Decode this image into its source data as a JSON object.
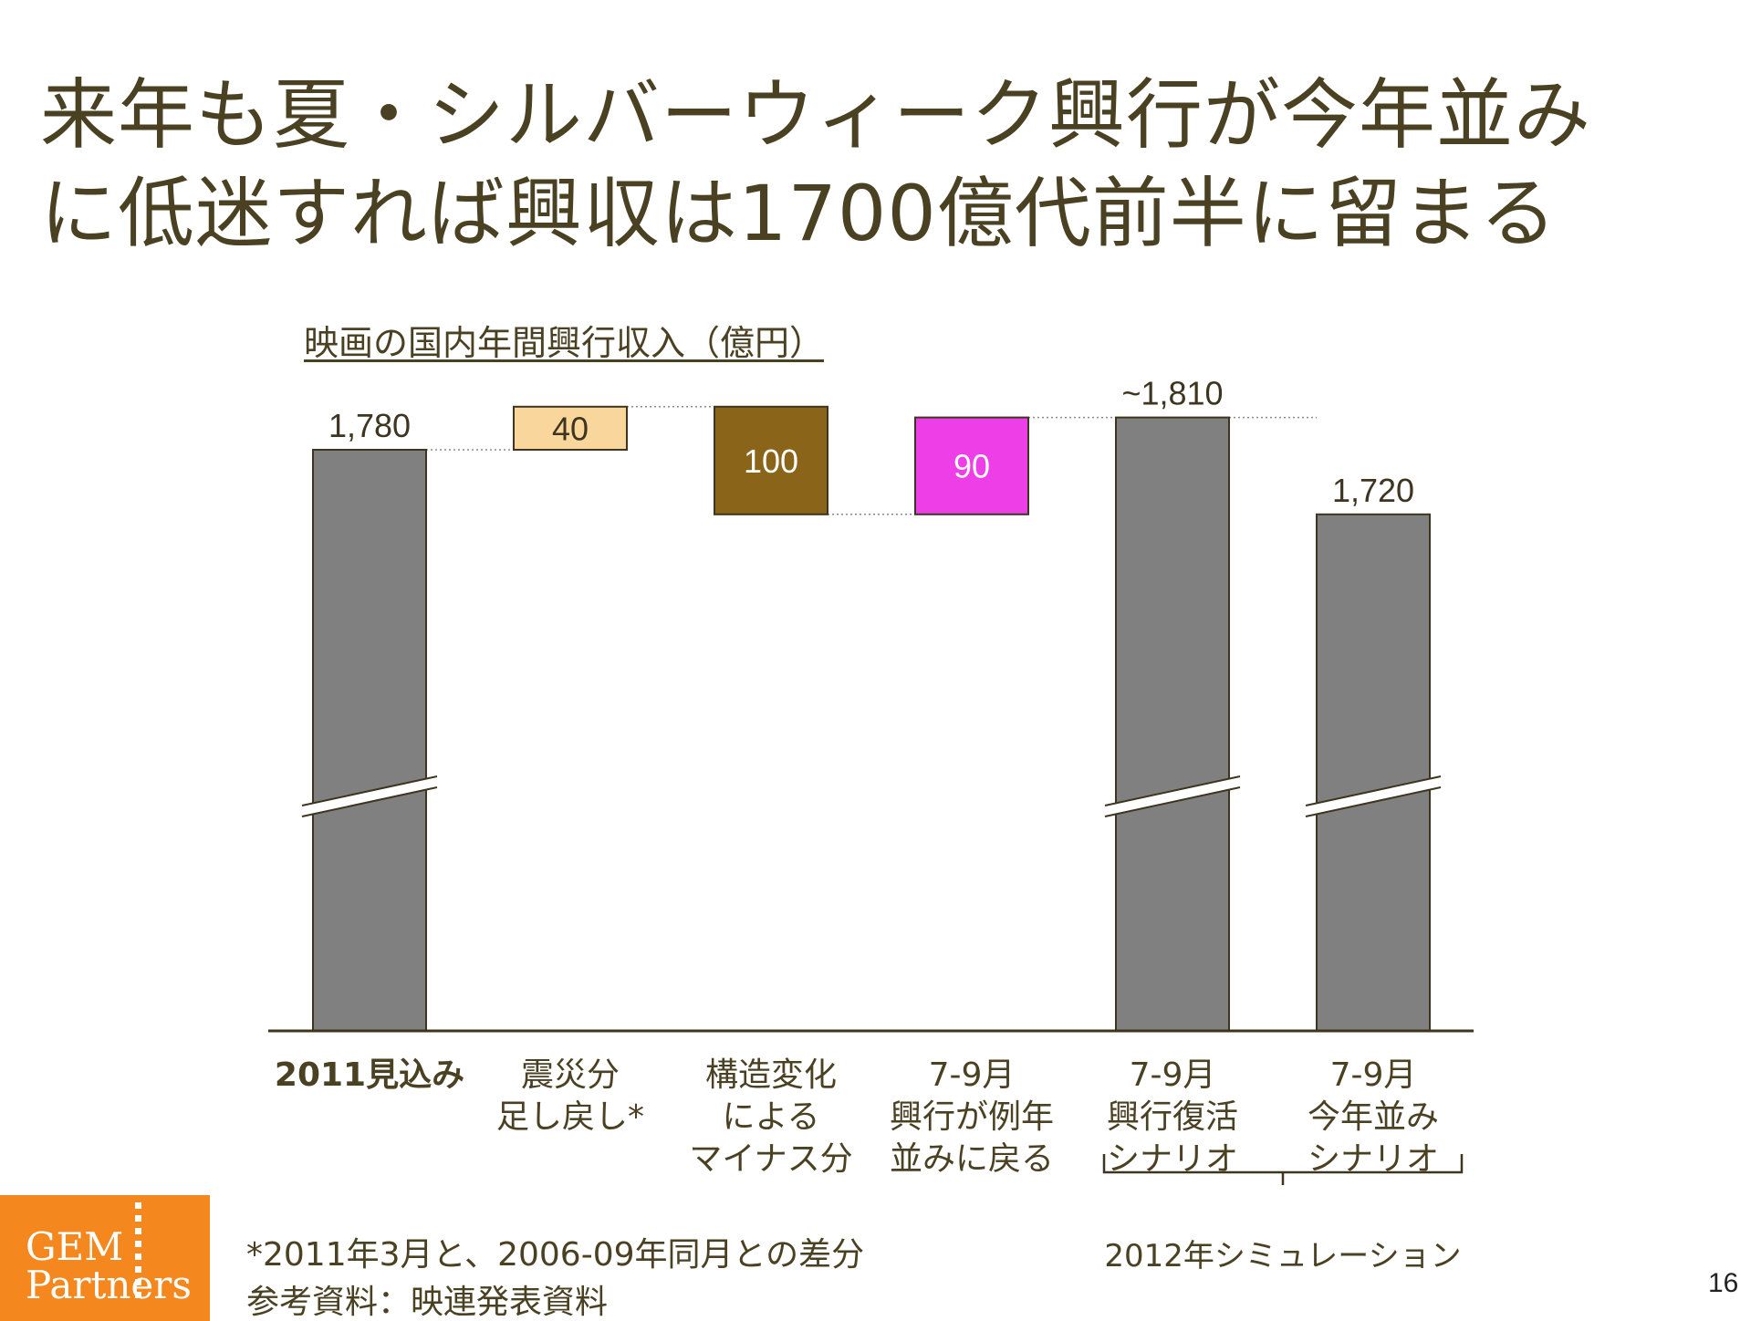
{
  "title": {
    "line1": "来年も夏・シルバーウィーク興行が今年並み",
    "line2": "に低迷すれば興収は1700億代前半に留まる"
  },
  "chart_heading": "映画の国内年間興行収入（億円）",
  "chart_data": {
    "type": "bar",
    "subtype": "waterfall",
    "title": "映画の国内年間興行収入（億円）",
    "unit": "億円",
    "axis_break": true,
    "categories": [
      [
        "2011見込み"
      ],
      [
        "震災分",
        "足し戻し*"
      ],
      [
        "構造変化",
        "による",
        "マイナス分"
      ],
      [
        "7-9月",
        "興行が例年",
        "並みに戻る"
      ],
      [
        "7-9月",
        "興行復活",
        "シナリオ"
      ],
      [
        "7-9月",
        "今年並み",
        "シナリオ"
      ]
    ],
    "values": [
      1780,
      40,
      -100,
      90,
      1810,
      1720
    ],
    "labels": [
      "1,780",
      "40",
      "100",
      "90",
      "~1,810",
      "1,720"
    ],
    "kinds": [
      "total",
      "increase",
      "decrease",
      "increase",
      "total",
      "total"
    ],
    "colors": [
      "#808080",
      "#f9d79c",
      "#8a6418",
      "#ee3ee8",
      "#808080",
      "#808080"
    ],
    "bracket_label": "2012年シミュレーション"
  },
  "footnote": {
    "line1": "*2011年3月と、2006-09年同月との差分",
    "line2": "参考資料：映連発表資料"
  },
  "logo": {
    "line1": "GEM",
    "line2": "Partners"
  },
  "page_number": "16"
}
